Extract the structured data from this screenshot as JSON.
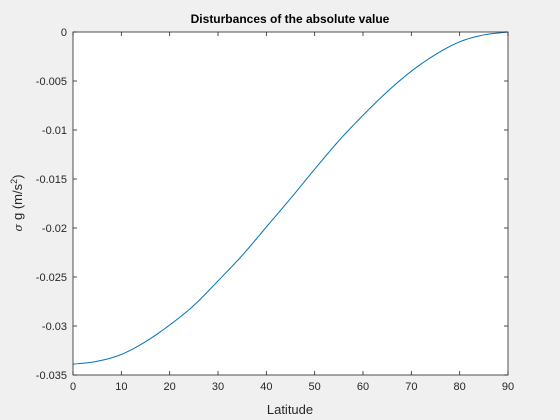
{
  "chart_data": {
    "type": "line",
    "title": "Disturbances of the absolute value",
    "xlabel": "Latitude",
    "ylabel": {
      "sigma": "σ",
      "prefix": "g (m/s",
      "sup": "2",
      "suffix": ")"
    },
    "xlim": [
      0,
      90
    ],
    "ylim": [
      -0.035,
      0
    ],
    "xticks": [
      0,
      10,
      20,
      30,
      40,
      50,
      60,
      70,
      80,
      90
    ],
    "yticks": [
      0,
      -0.005,
      -0.01,
      -0.015,
      -0.02,
      -0.025,
      -0.03,
      -0.035
    ],
    "xtick_labels": [
      "0",
      "10",
      "20",
      "30",
      "40",
      "50",
      "60",
      "70",
      "80",
      "90"
    ],
    "ytick_labels": [
      "0",
      "-0.005",
      "-0.01",
      "-0.015",
      "-0.02",
      "-0.025",
      "-0.03",
      "-0.035"
    ],
    "grid": false,
    "series": [
      {
        "color": "#0072bd",
        "x": [
          0,
          5,
          10,
          15,
          20,
          25,
          30,
          35,
          40,
          45,
          50,
          55,
          60,
          65,
          70,
          75,
          80,
          85,
          90
        ],
        "y": [
          -0.0339,
          -0.0336,
          -0.0329,
          -0.0316,
          -0.0299,
          -0.0279,
          -0.0254,
          -0.0228,
          -0.0199,
          -0.017,
          -0.014,
          -0.0111,
          -0.0085,
          -0.0061,
          -0.004,
          -0.0023,
          -0.001,
          -0.0003,
          0.0
        ]
      }
    ]
  }
}
